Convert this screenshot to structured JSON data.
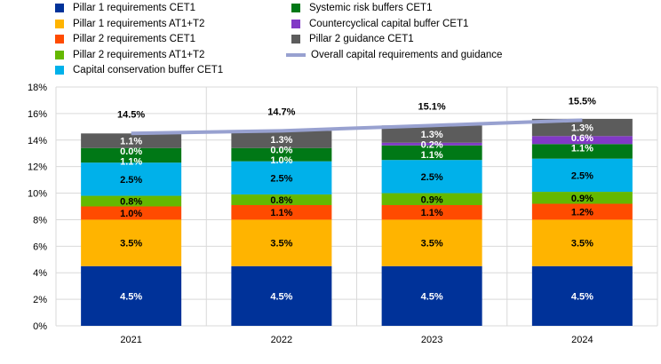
{
  "chart_data": {
    "type": "bar",
    "stacked": true,
    "categories": [
      "2021",
      "2022",
      "2023",
      "2024"
    ],
    "ylim": [
      0,
      18
    ],
    "yticks": [
      "0%",
      "2%",
      "4%",
      "6%",
      "8%",
      "10%",
      "12%",
      "14%",
      "16%",
      "18%"
    ],
    "grid": "horizontal",
    "legend_position": "top",
    "series": [
      {
        "name": "Pillar 1 requirements CET1",
        "color": "#003299",
        "values": [
          4.5,
          4.5,
          4.5,
          4.5
        ],
        "labels": [
          "4.5%",
          "4.5%",
          "4.5%",
          "4.5%"
        ],
        "label_color": "#ffffff"
      },
      {
        "name": "Pillar 1 requirements AT1+T2",
        "color": "#ffb400",
        "values": [
          3.5,
          3.5,
          3.5,
          3.5
        ],
        "labels": [
          "3.5%",
          "3.5%",
          "3.5%",
          "3.5%"
        ],
        "label_color": "#000000"
      },
      {
        "name": "Pillar 2 requirements CET1",
        "color": "#ff4b00",
        "values": [
          1.0,
          1.1,
          1.1,
          1.2
        ],
        "labels": [
          "1.0%",
          "1.1%",
          "1.1%",
          "1.2%"
        ],
        "label_color": "#000000"
      },
      {
        "name": "Pillar 2 requirements AT1+T2",
        "color": "#65b800",
        "values": [
          0.8,
          0.8,
          0.9,
          0.9
        ],
        "labels": [
          "0.8%",
          "0.8%",
          "0.9%",
          "0.9%"
        ],
        "label_color": "#000000"
      },
      {
        "name": "Capital conservation buffer CET1",
        "color": "#00b1ea",
        "values": [
          2.5,
          2.5,
          2.5,
          2.5
        ],
        "labels": [
          "2.5%",
          "2.5%",
          "2.5%",
          "2.5%"
        ],
        "label_color": "#000000"
      },
      {
        "name": "Systemic risk buffers CET1",
        "color": "#007816",
        "values": [
          1.1,
          1.0,
          1.1,
          1.1
        ],
        "labels": [
          "1.1%",
          "1.0%",
          "1.1%",
          "1.1%"
        ],
        "label_color": "#ffffff"
      },
      {
        "name": "Countercyclical capital buffer CET1",
        "color": "#8139c6",
        "values": [
          0.0,
          0.0,
          0.2,
          0.6
        ],
        "labels": [
          "0.0%",
          "0.0%",
          "0.2%",
          "0.6%"
        ],
        "label_color": "#ffffff"
      },
      {
        "name": "Pillar 2 guidance CET1",
        "color": "#5c5c5c",
        "values": [
          1.1,
          1.3,
          1.3,
          1.3
        ],
        "labels": [
          "1.1%",
          "1.3%",
          "1.3%",
          "1.3%"
        ],
        "label_color": "#ffffff"
      }
    ],
    "line_series": {
      "name": "Overall capital requirements and guidance",
      "color": "#98a1d0",
      "values": [
        14.5,
        14.7,
        15.1,
        15.5
      ],
      "labels": [
        "14.5%",
        "14.7%",
        "15.1%",
        "15.5%"
      ]
    }
  }
}
